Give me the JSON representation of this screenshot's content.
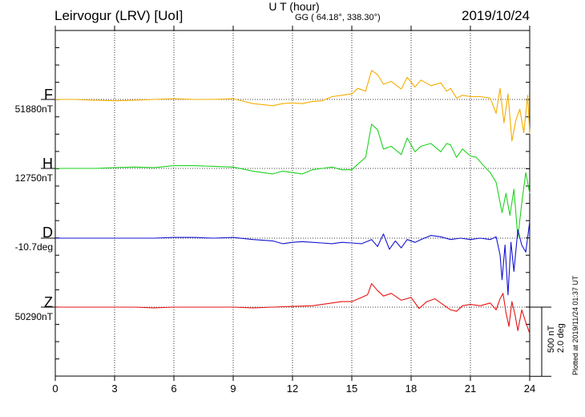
{
  "header": {
    "title": "Leirvogur (LRV)  [UoI]",
    "coordinates": "GG ( 64.18°, 338.30°)",
    "date": "2019/10/24"
  },
  "footer": {
    "xlabel": "U T (hour)",
    "scale_nt": "500 nT",
    "scale_deg": "2.0 deg",
    "plotted": "Plotted at 2019/11/24 01:37 UT"
  },
  "colors": {
    "F": "#f5ad00",
    "H": "#1ed21e",
    "D": "#1414d2",
    "Z": "#e61414",
    "grid": "#000000"
  },
  "chart_data": {
    "type": "line",
    "title": "Leirvogur (LRV)  [UoI]",
    "xlabel": "U T (hour)",
    "x_ticks": [
      0,
      3,
      6,
      9,
      12,
      15,
      18,
      21,
      24
    ],
    "xlim": [
      0,
      24
    ],
    "y_units": "nT (D in deg)",
    "scale_bar": {
      "nt": 500,
      "deg": 2.0
    },
    "grid": true,
    "series": [
      {
        "name": "F",
        "baseline_label": "51880nT",
        "baseline": 51880,
        "unit": "nT",
        "color": "#f5ad00",
        "points": [
          [
            0,
            0
          ],
          [
            1,
            0
          ],
          [
            2,
            -5
          ],
          [
            3,
            -10
          ],
          [
            4,
            -5
          ],
          [
            5,
            0
          ],
          [
            6,
            5
          ],
          [
            7,
            0
          ],
          [
            8,
            0
          ],
          [
            9,
            5
          ],
          [
            10,
            -30
          ],
          [
            11,
            -45
          ],
          [
            11.5,
            -30
          ],
          [
            12,
            -25
          ],
          [
            12.5,
            -30
          ],
          [
            13,
            -15
          ],
          [
            13.5,
            -10
          ],
          [
            14,
            20
          ],
          [
            14.5,
            30
          ],
          [
            15,
            40
          ],
          [
            15.3,
            80
          ],
          [
            15.7,
            60
          ],
          [
            16,
            210
          ],
          [
            16.3,
            180
          ],
          [
            16.6,
            110
          ],
          [
            17,
            130
          ],
          [
            17.5,
            75
          ],
          [
            17.8,
            160
          ],
          [
            18.2,
            90
          ],
          [
            18.5,
            140
          ],
          [
            19,
            100
          ],
          [
            19.5,
            120
          ],
          [
            19.8,
            60
          ],
          [
            20,
            80
          ],
          [
            20.3,
            10
          ],
          [
            20.6,
            30
          ],
          [
            21,
            20
          ],
          [
            21.5,
            20
          ],
          [
            22,
            10
          ],
          [
            22.3,
            -100
          ],
          [
            22.5,
            80
          ],
          [
            22.7,
            -170
          ],
          [
            22.9,
            40
          ],
          [
            23.1,
            -300
          ],
          [
            23.3,
            -150
          ],
          [
            23.5,
            -70
          ],
          [
            23.7,
            -240
          ],
          [
            23.9,
            30
          ],
          [
            24,
            -250
          ]
        ]
      },
      {
        "name": "H",
        "baseline_label": "12750nT",
        "baseline": 12750,
        "unit": "nT",
        "color": "#1ed21e",
        "points": [
          [
            0,
            0
          ],
          [
            1,
            0
          ],
          [
            2,
            0
          ],
          [
            3,
            5
          ],
          [
            4,
            10
          ],
          [
            5,
            5
          ],
          [
            6,
            20
          ],
          [
            7,
            20
          ],
          [
            8,
            15
          ],
          [
            9,
            10
          ],
          [
            10,
            -20
          ],
          [
            11,
            -40
          ],
          [
            11.5,
            -20
          ],
          [
            12,
            -30
          ],
          [
            12.5,
            -40
          ],
          [
            13,
            -10
          ],
          [
            13.5,
            0
          ],
          [
            14,
            10
          ],
          [
            14.5,
            -10
          ],
          [
            15,
            -10
          ],
          [
            15.3,
            30
          ],
          [
            15.7,
            80
          ],
          [
            16,
            320
          ],
          [
            16.3,
            280
          ],
          [
            16.6,
            140
          ],
          [
            17,
            160
          ],
          [
            17.5,
            100
          ],
          [
            17.8,
            220
          ],
          [
            18.2,
            120
          ],
          [
            18.5,
            160
          ],
          [
            19,
            180
          ],
          [
            19.5,
            120
          ],
          [
            19.8,
            180
          ],
          [
            20,
            170
          ],
          [
            20.3,
            80
          ],
          [
            20.6,
            140
          ],
          [
            21,
            90
          ],
          [
            21.3,
            80
          ],
          [
            21.6,
            30
          ],
          [
            22,
            -30
          ],
          [
            22.3,
            -100
          ],
          [
            22.6,
            -320
          ],
          [
            22.8,
            -180
          ],
          [
            23,
            -340
          ],
          [
            23.2,
            -150
          ],
          [
            23.4,
            -500
          ],
          [
            23.6,
            -250
          ],
          [
            23.8,
            -30
          ],
          [
            24,
            -180
          ]
        ]
      },
      {
        "name": "D",
        "baseline_label": "-10.7deg",
        "baseline": -10.7,
        "unit": "deg",
        "color": "#1414d2",
        "points": [
          [
            0,
            0
          ],
          [
            1,
            0
          ],
          [
            2,
            0
          ],
          [
            3,
            0
          ],
          [
            4,
            0
          ],
          [
            5,
            0
          ],
          [
            6,
            5
          ],
          [
            7,
            5
          ],
          [
            8,
            0
          ],
          [
            9,
            5
          ],
          [
            10,
            -10
          ],
          [
            11,
            -20
          ],
          [
            11.5,
            -40
          ],
          [
            12,
            -30
          ],
          [
            12.5,
            -25
          ],
          [
            13,
            -30
          ],
          [
            13.5,
            -35
          ],
          [
            14,
            -40
          ],
          [
            14.5,
            -30
          ],
          [
            15,
            -35
          ],
          [
            15.5,
            -40
          ],
          [
            16,
            -10
          ],
          [
            16.3,
            -60
          ],
          [
            16.6,
            30
          ],
          [
            16.9,
            -80
          ],
          [
            17.2,
            -20
          ],
          [
            17.5,
            -70
          ],
          [
            17.8,
            -10
          ],
          [
            18.2,
            -30
          ],
          [
            18.5,
            -10
          ],
          [
            19,
            20
          ],
          [
            19.5,
            10
          ],
          [
            20,
            -10
          ],
          [
            20.5,
            0
          ],
          [
            21,
            -10
          ],
          [
            21.5,
            0
          ],
          [
            22,
            -10
          ],
          [
            22.3,
            10
          ],
          [
            22.5,
            -120
          ],
          [
            22.6,
            -300
          ],
          [
            22.75,
            -50
          ],
          [
            22.9,
            -410
          ],
          [
            23.05,
            -30
          ],
          [
            23.2,
            -240
          ],
          [
            23.4,
            60
          ],
          [
            23.6,
            -50
          ],
          [
            23.8,
            -100
          ],
          [
            24,
            120
          ]
        ]
      },
      {
        "name": "Z",
        "baseline_label": "50290nT",
        "baseline": 50290,
        "unit": "nT",
        "color": "#e61414",
        "points": [
          [
            0,
            0
          ],
          [
            1,
            0
          ],
          [
            2,
            0
          ],
          [
            3,
            0
          ],
          [
            4,
            0
          ],
          [
            5,
            -5
          ],
          [
            6,
            0
          ],
          [
            7,
            0
          ],
          [
            8,
            0
          ],
          [
            9,
            0
          ],
          [
            10,
            -5
          ],
          [
            11,
            0
          ],
          [
            12,
            5
          ],
          [
            13,
            10
          ],
          [
            13.5,
            20
          ],
          [
            14,
            30
          ],
          [
            14.5,
            40
          ],
          [
            15,
            40
          ],
          [
            15.5,
            70
          ],
          [
            15.8,
            90
          ],
          [
            16,
            170
          ],
          [
            16.3,
            120
          ],
          [
            16.6,
            80
          ],
          [
            17,
            100
          ],
          [
            17.5,
            50
          ],
          [
            18,
            70
          ],
          [
            18.4,
            -10
          ],
          [
            18.8,
            40
          ],
          [
            19.2,
            60
          ],
          [
            19.6,
            20
          ],
          [
            20,
            -20
          ],
          [
            20.3,
            -30
          ],
          [
            20.6,
            10
          ],
          [
            21,
            20
          ],
          [
            21.5,
            10
          ],
          [
            22,
            30
          ],
          [
            22.3,
            -20
          ],
          [
            22.5,
            60
          ],
          [
            22.65,
            100
          ],
          [
            22.8,
            -40
          ],
          [
            22.95,
            -140
          ],
          [
            23.1,
            40
          ],
          [
            23.25,
            -50
          ],
          [
            23.4,
            -170
          ],
          [
            23.6,
            -20
          ],
          [
            23.8,
            -110
          ],
          [
            24,
            -190
          ]
        ]
      }
    ]
  }
}
